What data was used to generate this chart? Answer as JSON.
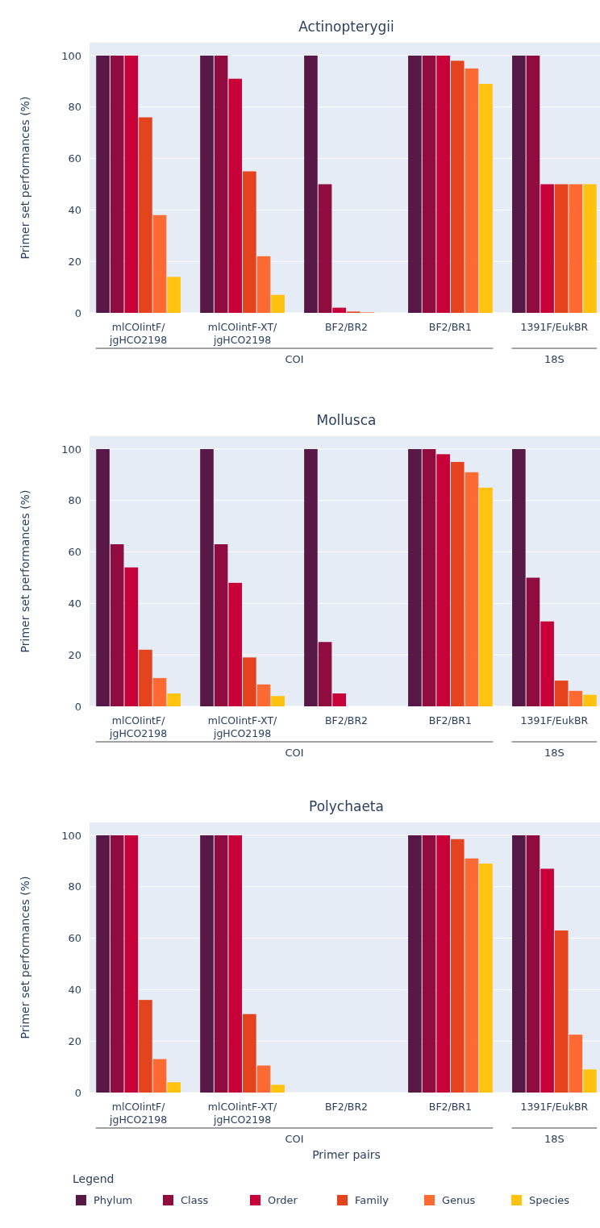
{
  "chart_data": [
    {
      "type": "bar",
      "title": "Actinopterygii",
      "ylabel": "Primer set performances (%)",
      "categories": [
        "mlCOIintF/\njgHCO2198",
        "mlCOIintF-XT/\njgHCO2198",
        "BF2/BR2",
        "BF2/BR1",
        "1391F/EukBR"
      ],
      "ylim": [
        0,
        105
      ],
      "yticks": [
        0,
        20,
        40,
        60,
        80,
        100
      ],
      "grid": "y",
      "legend": false,
      "annotations": [
        "COI",
        "18S"
      ],
      "series": [
        {
          "color": "#581845",
          "values": [
            100,
            100,
            100,
            100,
            100
          ]
        },
        {
          "color": "#900c3f",
          "values": [
            100,
            100,
            50,
            100,
            100
          ]
        },
        {
          "color": "#c70039",
          "values": [
            100,
            91,
            2,
            100,
            50
          ]
        },
        {
          "color": "#e3441d",
          "values": [
            76,
            55,
            0.5,
            98,
            50
          ]
        },
        {
          "color": "#ff6a33",
          "values": [
            38,
            22,
            0.2,
            95,
            50
          ]
        },
        {
          "color": "#ffc30f",
          "values": [
            14,
            7,
            0,
            89,
            50
          ]
        }
      ]
    },
    {
      "type": "bar",
      "title": "Mollusca",
      "ylabel": "Primer set performances (%)",
      "categories": [
        "mlCOIintF/\njgHCO2198",
        "mlCOIintF-XT/\njgHCO2198",
        "BF2/BR2",
        "BF2/BR1",
        "1391F/EukBR"
      ],
      "ylim": [
        0,
        105
      ],
      "yticks": [
        0,
        20,
        40,
        60,
        80,
        100
      ],
      "grid": "y",
      "legend": false,
      "annotations": [
        "COI",
        "18S"
      ],
      "series": [
        {
          "color": "#581845",
          "values": [
            100,
            100,
            100,
            100,
            100
          ]
        },
        {
          "color": "#900c3f",
          "values": [
            63,
            63,
            25,
            100,
            50
          ]
        },
        {
          "color": "#c70039",
          "values": [
            54,
            48,
            5,
            98,
            33
          ]
        },
        {
          "color": "#e3441d",
          "values": [
            22,
            19,
            0,
            95,
            10
          ]
        },
        {
          "color": "#ff6a33",
          "values": [
            11,
            8.5,
            0,
            91,
            6
          ]
        },
        {
          "color": "#ffc30f",
          "values": [
            5,
            4,
            0,
            85,
            4.5
          ]
        }
      ]
    },
    {
      "type": "bar",
      "title": "Polychaeta",
      "ylabel": "Primer set performances (%)",
      "xlabel": "Primer pairs",
      "legend_title": "Legend",
      "categories": [
        "mlCOIintF/\njgHCO2198",
        "mlCOIintF-XT/\njgHCO2198",
        "BF2/BR2",
        "BF2/BR1",
        "1391F/EukBR"
      ],
      "ylim": [
        0,
        105
      ],
      "yticks": [
        0,
        20,
        40,
        60,
        80,
        100
      ],
      "grid": "y",
      "legend": "bottom",
      "annotations": [
        "COI",
        "18S"
      ],
      "series": [
        {
          "name": "Phylum",
          "color": "#581845",
          "values": [
            100,
            100,
            0,
            100,
            100
          ]
        },
        {
          "name": "Class",
          "color": "#900c3f",
          "values": [
            100,
            100,
            0,
            100,
            100
          ]
        },
        {
          "name": "Order",
          "color": "#c70039",
          "values": [
            100,
            100,
            0,
            100,
            87
          ]
        },
        {
          "name": "Family",
          "color": "#e3441d",
          "values": [
            36,
            30.5,
            0,
            98.5,
            63
          ]
        },
        {
          "name": "Genus",
          "color": "#ff6a33",
          "values": [
            13,
            10.5,
            0,
            91,
            22.5
          ]
        },
        {
          "name": "Species",
          "color": "#ffc30f",
          "values": [
            4,
            3,
            0,
            89,
            9
          ]
        }
      ]
    }
  ]
}
